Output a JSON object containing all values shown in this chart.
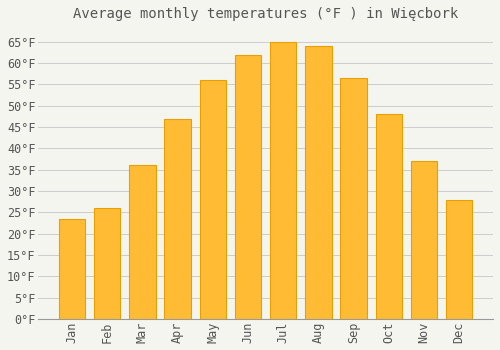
{
  "title": "Average monthly temperatures (°F ) in Więcbork",
  "months": [
    "Jan",
    "Feb",
    "Mar",
    "Apr",
    "May",
    "Jun",
    "Jul",
    "Aug",
    "Sep",
    "Oct",
    "Nov",
    "Dec"
  ],
  "values": [
    23.5,
    26.0,
    36.0,
    47.0,
    56.0,
    62.0,
    65.0,
    64.0,
    56.5,
    48.0,
    37.0,
    28.0
  ],
  "bar_color": "#FFBB33",
  "bar_edge_color": "#E8A000",
  "background_color": "#f5f5f0",
  "grid_color": "#cccccc",
  "text_color": "#555555",
  "ylim": [
    0,
    68
  ],
  "yticks": [
    0,
    5,
    10,
    15,
    20,
    25,
    30,
    35,
    40,
    45,
    50,
    55,
    60,
    65
  ],
  "title_fontsize": 10,
  "tick_fontsize": 8.5,
  "font_family": "monospace"
}
